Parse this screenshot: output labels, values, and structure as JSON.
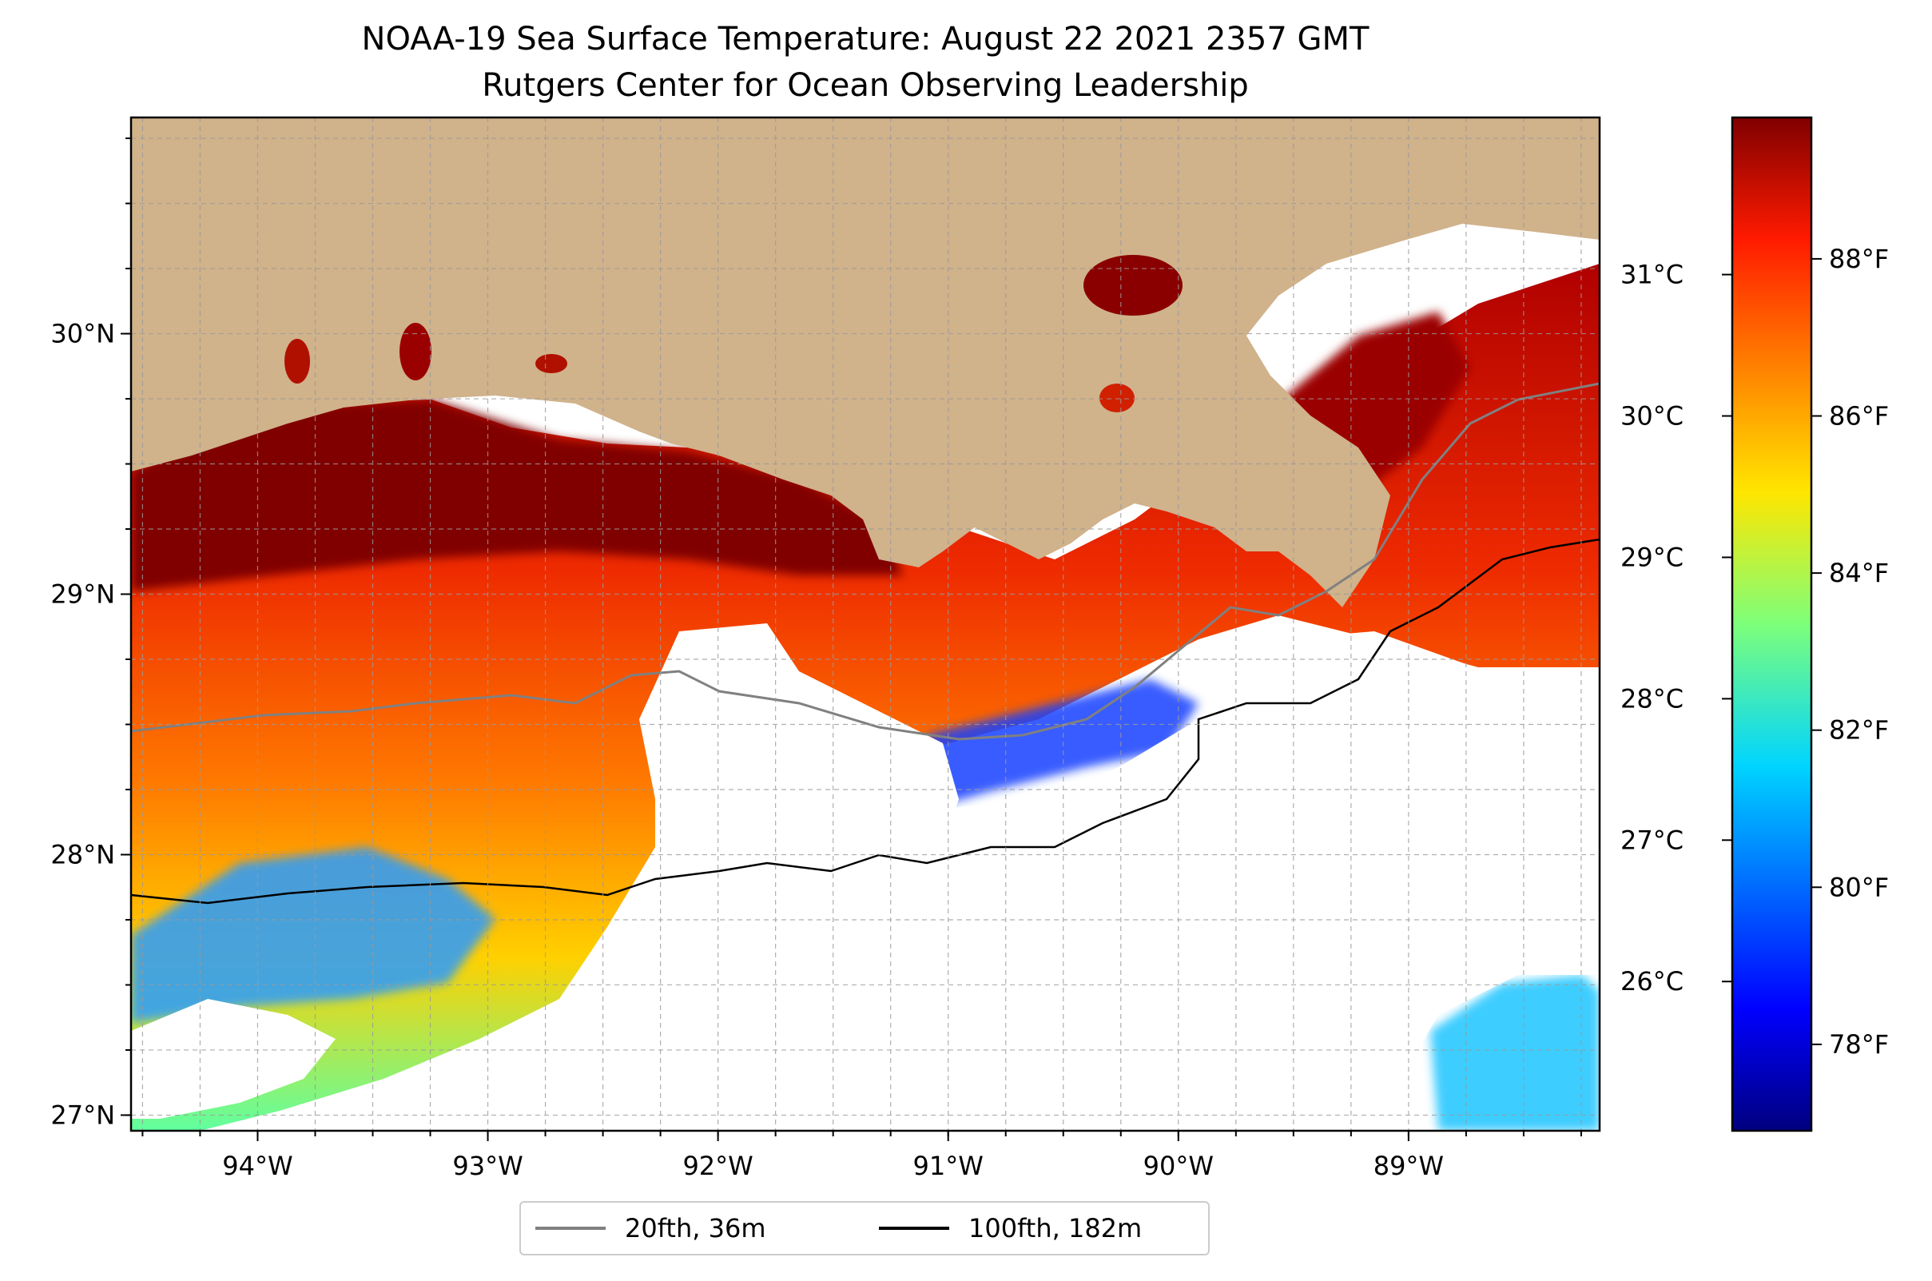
{
  "title": {
    "line1": "NOAA-19 Sea Surface Temperature: August 22 2021 2357 GMT",
    "line2": "Rutgers Center for Ocean Observing Leadership"
  },
  "map": {
    "lon_range": [
      -94.55,
      -88.17
    ],
    "lat_range": [
      26.94,
      30.83
    ],
    "lon_ticks": [
      {
        "value": -94,
        "label": "94°W"
      },
      {
        "value": -93,
        "label": "93°W"
      },
      {
        "value": -92,
        "label": "92°W"
      },
      {
        "value": -91,
        "label": "91°W"
      },
      {
        "value": -90,
        "label": "90°W"
      },
      {
        "value": -89,
        "label": "89°W"
      }
    ],
    "lat_ticks": [
      {
        "value": 30,
        "label": "30°N"
      },
      {
        "value": 29,
        "label": "29°N"
      },
      {
        "value": 28,
        "label": "28°N"
      },
      {
        "value": 27,
        "label": "27°N"
      }
    ],
    "gridlines": true,
    "land_color": "#d0b28b",
    "missing_data_color": "#ffffff"
  },
  "colorbar": {
    "colormap": "jet",
    "range_f": [
      76.9,
      89.8
    ],
    "fahrenheit_ticks": [
      {
        "value": 78,
        "label": "78°F"
      },
      {
        "value": 80,
        "label": "80°F"
      },
      {
        "value": 82,
        "label": "82°F"
      },
      {
        "value": 84,
        "label": "84°F"
      },
      {
        "value": 86,
        "label": "86°F"
      },
      {
        "value": 88,
        "label": "88°F"
      }
    ],
    "celsius_ticks": [
      {
        "value": 26,
        "label": "26°C"
      },
      {
        "value": 27,
        "label": "27°C"
      },
      {
        "value": 28,
        "label": "28°C"
      },
      {
        "value": 29,
        "label": "29°C"
      },
      {
        "value": 30,
        "label": "30°C"
      },
      {
        "value": 31,
        "label": "31°C"
      }
    ]
  },
  "legend": {
    "items": [
      {
        "label": "20fth, 36m",
        "color": "#808080"
      },
      {
        "label": "100fth, 182m",
        "color": "#000000"
      }
    ]
  }
}
